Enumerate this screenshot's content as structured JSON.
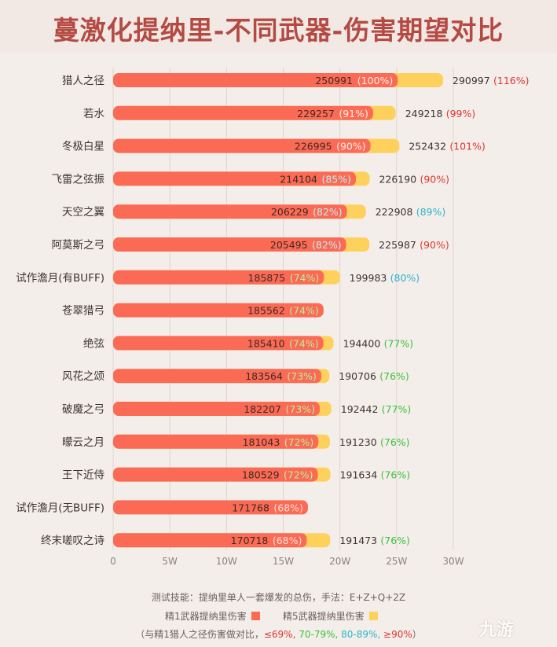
{
  "title": "蔓激化提纳里-不同武器-伤害期望对比",
  "colors": {
    "background": "#f4eeea",
    "bar_refine1": "#fb6a55",
    "bar_refine5": "#fed05c",
    "pct_low": "#e0352d",
    "pct_70_79": "#3cbf3c",
    "pct_80_89": "#2bb5c9",
    "pct_90_plus": "#e0352d",
    "pct_in_bar_low": "#ffe0d6",
    "pct_in_bar_70_79": "#b4f0a0",
    "pct_in_bar_80_89": "#b8f2f8",
    "pct_in_bar_90_plus": "#fff1e8"
  },
  "chart_data": {
    "type": "bar",
    "orientation": "horizontal",
    "title": "蔓激化提纳里-不同武器-伤害期望对比",
    "x_ticks": [
      "0",
      "5W",
      "10W",
      "15W",
      "20W",
      "25W",
      "30W"
    ],
    "xlim": [
      0,
      300000
    ],
    "grid": true,
    "legend_position": "bottom",
    "categories": [
      "猎人之径",
      "若水",
      "冬极白星",
      "飞雷之弦振",
      "天空之翼",
      "阿莫斯之弓",
      "试作澹月(有BUFF)",
      "苍翠猎弓",
      "绝弦",
      "风花之颂",
      "破魔之弓",
      "曚云之月",
      "王下近侍",
      "试作澹月(无BUFF)",
      "终末嗟叹之诗"
    ],
    "series": [
      {
        "name": "精1武器提纳里伤害",
        "values": [
          250991,
          229257,
          226995,
          214104,
          206229,
          205495,
          185875,
          185562,
          185410,
          183564,
          182207,
          181043,
          180529,
          171768,
          170718
        ],
        "labels": [
          "250991",
          "229257",
          "226995",
          "214104",
          "206229",
          "205495",
          "185875",
          "185562",
          "185410",
          "183564",
          "182207",
          "181043",
          "180529",
          "171768",
          "170718"
        ],
        "percents": [
          "(100%)",
          "(91%)",
          "(90%)",
          "(85%)",
          "(82%)",
          "(82%)",
          "(74%)",
          "(74%)",
          "(74%)",
          "(73%)",
          "(73%)",
          "(72%)",
          "(72%)",
          "(68%)",
          "(68%)"
        ]
      },
      {
        "name": "精5武器提纳里伤害",
        "values": [
          290997,
          249218,
          252432,
          226190,
          222908,
          225987,
          199983,
          null,
          194400,
          190706,
          192442,
          191230,
          191634,
          null,
          191473
        ],
        "labels": [
          "290997",
          "249218",
          "252432",
          "226190",
          "222908",
          "225987",
          "199983",
          "",
          "194400",
          "190706",
          "192442",
          "191230",
          "191634",
          "",
          "191473"
        ],
        "percents": [
          "(116%)",
          "(99%)",
          "(101%)",
          "(90%)",
          "(89%)",
          "(90%)",
          "(80%)",
          "",
          "(77%)",
          "(76%)",
          "(77%)",
          "(76%)",
          "(76%)",
          "",
          "(76%)"
        ]
      }
    ]
  },
  "notes": {
    "skill_text": "测试技能：提纳里单人一套爆发的总伤，手法：E+Z+Q+2Z",
    "legend_refine1": "精1武器提纳里伤害",
    "legend_refine5": "精5武器提纳里伤害",
    "compare_prefix": "（与精1猎人之径伤害做对比，",
    "compare_low": "≤69%,",
    "compare_mid": " 70-79%,",
    "compare_high": " 80-89%,",
    "compare_top": " ≥90%",
    "compare_suffix": "）"
  },
  "watermark": "九游"
}
